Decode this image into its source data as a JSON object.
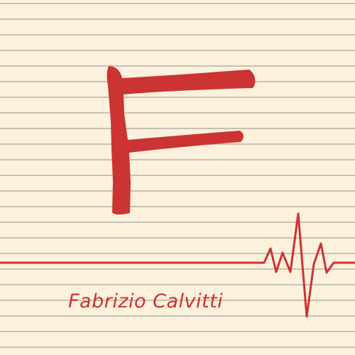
{
  "logo": {
    "monogram": "F",
    "name": "Fabrizio Calvitti"
  },
  "colors": {
    "paper": "#fbf1dc",
    "rule_line": "#c8c2b3",
    "ink_red": "#cc3333"
  },
  "graphics": {
    "background": "lined-paper",
    "pulse_icon": "heartbeat-pulse-icon"
  }
}
